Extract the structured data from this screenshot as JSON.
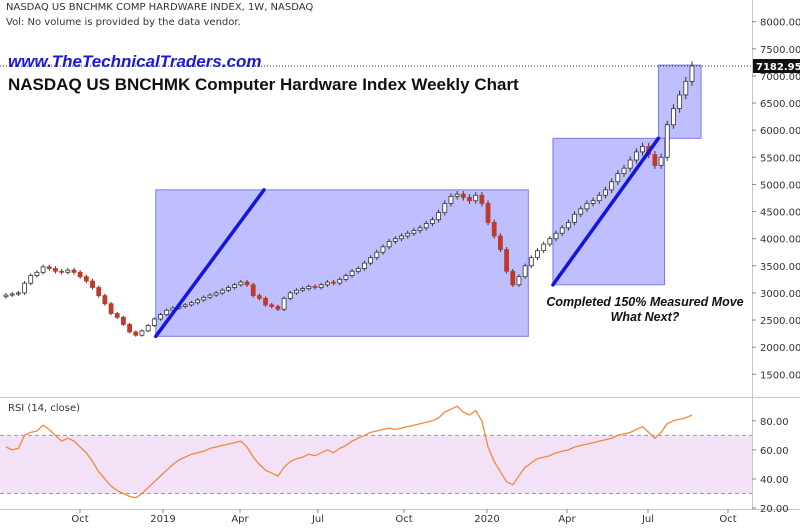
{
  "header": {
    "line1": "NASDAQ US BNCHMK COMP HARDWARE INDEX, 1W, NASDAQ",
    "line2": "Vol: No volume is provided by the data vendor.",
    "brand": "www.TheTechnicalTraders.com",
    "title": "NASDAQ US BNCHMK Computer Hardware Index Weekly Chart"
  },
  "annotation": {
    "line1": "Completed 150% Measured Move",
    "line2": "What Next?"
  },
  "rsi": {
    "label": "RSI (14, close)"
  },
  "colors": {
    "up_candle": "#ffffff",
    "down_candle": "#c0392b",
    "candle_outline": "#333333",
    "trend_line": "#1414e0",
    "box_fill": "#8080ff",
    "rsi_line": "#f08a3c",
    "rsi_band": "#f3e1f7"
  },
  "chart_data": [
    {
      "type": "candlestick",
      "title": "NASDAQ US BNCHMK Computer Hardware Index Weekly Chart",
      "x_tick_labels": [
        "Oct",
        "2019",
        "Apr",
        "Jul",
        "Oct",
        "2020",
        "Apr",
        "Jul",
        "Oct"
      ],
      "y_tick_labels": [
        "1500.00",
        "2000.00",
        "2500.00",
        "3000.00",
        "3500.00",
        "4000.00",
        "4500.00",
        "5000.00",
        "5500.00",
        "6000.00",
        "6500.00",
        "7000.00",
        "7500.00",
        "8000.00"
      ],
      "ylim": [
        1100,
        8400
      ],
      "last_price_label": "7182.95",
      "last_price": 7182.95,
      "weekly_close_estimates": [
        2960,
        2980,
        3000,
        3180,
        3320,
        3380,
        3480,
        3450,
        3400,
        3380,
        3420,
        3380,
        3300,
        3220,
        3100,
        2950,
        2800,
        2620,
        2550,
        2420,
        2280,
        2220,
        2300,
        2400,
        2520,
        2600,
        2680,
        2720,
        2750,
        2780,
        2820,
        2870,
        2920,
        2960,
        3000,
        3050,
        3100,
        3150,
        3200,
        3150,
        2950,
        2900,
        2780,
        2750,
        2700,
        2900,
        3000,
        3050,
        3080,
        3120,
        3100,
        3150,
        3200,
        3180,
        3250,
        3320,
        3400,
        3450,
        3550,
        3650,
        3750,
        3850,
        3950,
        4000,
        4050,
        4100,
        4150,
        4200,
        4280,
        4350,
        4480,
        4650,
        4780,
        4820,
        4760,
        4700,
        4800,
        4650,
        4300,
        4050,
        3800,
        3400,
        3150,
        3300,
        3500,
        3650,
        3780,
        3900,
        4000,
        4100,
        4200,
        4300,
        4450,
        4550,
        4650,
        4700,
        4800,
        4900,
        5050,
        5200,
        5300,
        5450,
        5600,
        5700,
        5550,
        5350,
        5500,
        6100,
        6400,
        6650,
        6900,
        7182.95
      ],
      "overlays": {
        "boxes": [
          {
            "x": [
              "2018-12-24",
              "2020-02-17"
            ],
            "y": [
              2200,
              4900
            ]
          },
          {
            "x": [
              "2020-03-16",
              "2020-07-20"
            ],
            "y": [
              3150,
              5850
            ]
          },
          {
            "x": [
              "2020-07-13",
              "2020-08-31"
            ],
            "y": [
              5850,
              7200
            ]
          }
        ],
        "trend_lines": [
          {
            "x": [
              "2018-12-24",
              "2019-04-29"
            ],
            "y": [
              2200,
              4900
            ]
          },
          {
            "x": [
              "2020-03-16",
              "2020-07-13"
            ],
            "y": [
              3150,
              5850
            ]
          }
        ]
      }
    },
    {
      "type": "line",
      "title": "RSI (14, close)",
      "y_tick_labels": [
        "20.00",
        "40.00",
        "60.00",
        "80.00"
      ],
      "ylim": [
        20,
        95
      ],
      "bands": [
        30,
        70
      ],
      "values": [
        62,
        60,
        61,
        70,
        72,
        73,
        77,
        74,
        70,
        66,
        68,
        66,
        62,
        58,
        52,
        45,
        40,
        35,
        32,
        30,
        28,
        27,
        30,
        34,
        38,
        42,
        46,
        50,
        53,
        55,
        57,
        58,
        59,
        61,
        62,
        63,
        64,
        65,
        66,
        62,
        55,
        50,
        46,
        44,
        42,
        48,
        52,
        54,
        55,
        57,
        56,
        58,
        60,
        58,
        61,
        63,
        66,
        68,
        70,
        72,
        73,
        74,
        75,
        74,
        75,
        76,
        77,
        78,
        79,
        80,
        82,
        86,
        88,
        90,
        86,
        84,
        87,
        80,
        62,
        52,
        45,
        38,
        36,
        42,
        48,
        51,
        54,
        55,
        56,
        58,
        59,
        60,
        62,
        63,
        64,
        65,
        66,
        67,
        68,
        70,
        71,
        72,
        74,
        76,
        72,
        68,
        72,
        78,
        80,
        81,
        82,
        84
      ]
    }
  ]
}
